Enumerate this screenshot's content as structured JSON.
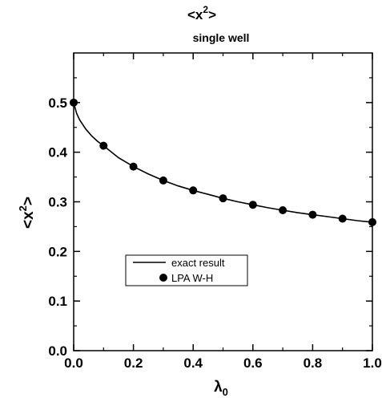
{
  "chart_data": {
    "type": "line",
    "title": "<x",
    "title_superscript": "2",
    "title_suffix": ">",
    "subtitle": "single well",
    "xlabel": "λ",
    "xlabel_subscript": "0",
    "ylabel": "<x",
    "ylabel_superscript": "2",
    "ylabel_suffix": ">",
    "xlim": [
      0.0,
      1.0
    ],
    "ylim": [
      0.0,
      0.6
    ],
    "x_ticks": [
      "0.0",
      "0.2",
      "0.4",
      "0.6",
      "0.8",
      "1.0"
    ],
    "y_ticks": [
      "0.0",
      "0.1",
      "0.2",
      "0.3",
      "0.4",
      "0.5"
    ],
    "grid": false,
    "legend_position": "lower-left",
    "series": [
      {
        "name": "exact result",
        "style": "line",
        "color": "#000000",
        "x": [
          0.0,
          0.01,
          0.02,
          0.04,
          0.06,
          0.08,
          0.1,
          0.15,
          0.2,
          0.25,
          0.3,
          0.35,
          0.4,
          0.45,
          0.5,
          0.55,
          0.6,
          0.65,
          0.7,
          0.75,
          0.8,
          0.85,
          0.9,
          0.95,
          1.0
        ],
        "y": [
          0.5,
          0.478,
          0.465,
          0.447,
          0.433,
          0.422,
          0.413,
          0.389,
          0.371,
          0.356,
          0.343,
          0.332,
          0.323,
          0.315,
          0.307,
          0.3,
          0.294,
          0.288,
          0.283,
          0.278,
          0.274,
          0.27,
          0.266,
          0.262,
          0.259
        ]
      },
      {
        "name": "LPA W-H",
        "style": "markers",
        "color": "#000000",
        "x": [
          0.0,
          0.1,
          0.2,
          0.3,
          0.4,
          0.5,
          0.6,
          0.7,
          0.8,
          0.9,
          1.0
        ],
        "y": [
          0.5,
          0.413,
          0.371,
          0.343,
          0.323,
          0.307,
          0.294,
          0.283,
          0.274,
          0.266,
          0.259
        ]
      }
    ]
  }
}
